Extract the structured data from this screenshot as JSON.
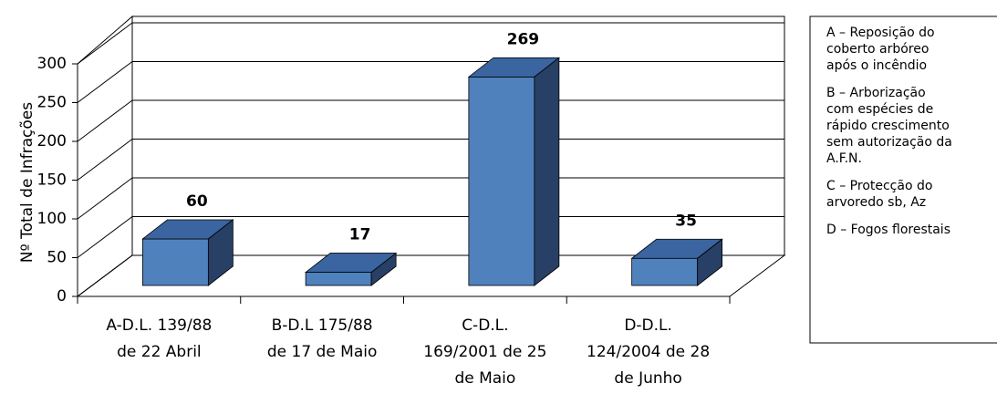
{
  "chart_data": {
    "type": "bar3d",
    "ylabel": "Nº Total de  Infrações",
    "categories": [
      [
        "A-D.L. 139/88",
        "de 22 Abril"
      ],
      [
        "B-D.L 175/88",
        "de 17 de Maio"
      ],
      [
        "C-D.L.",
        "169/2001 de 25",
        "de Maio"
      ],
      [
        "D-D.L.",
        "124/2004 de 28",
        "de Junho"
      ]
    ],
    "values": [
      60,
      17,
      269,
      35
    ],
    "color": "#4f81bd",
    "ylim": [
      0,
      300
    ],
    "yticks": [
      0,
      50,
      100,
      150,
      200,
      250,
      300
    ],
    "grid": true,
    "legend_notes": [
      [
        "A – Reposição do",
        "coberto arbóreo",
        "após o incêndio"
      ],
      [
        "B – Arborização",
        "com espécies de",
        "rápido crescimento",
        "sem autorização da",
        "A.F.N."
      ],
      [
        "C – Protecção do",
        "arvoredo sb, Az"
      ],
      [
        "D – Fogos florestais"
      ]
    ]
  }
}
